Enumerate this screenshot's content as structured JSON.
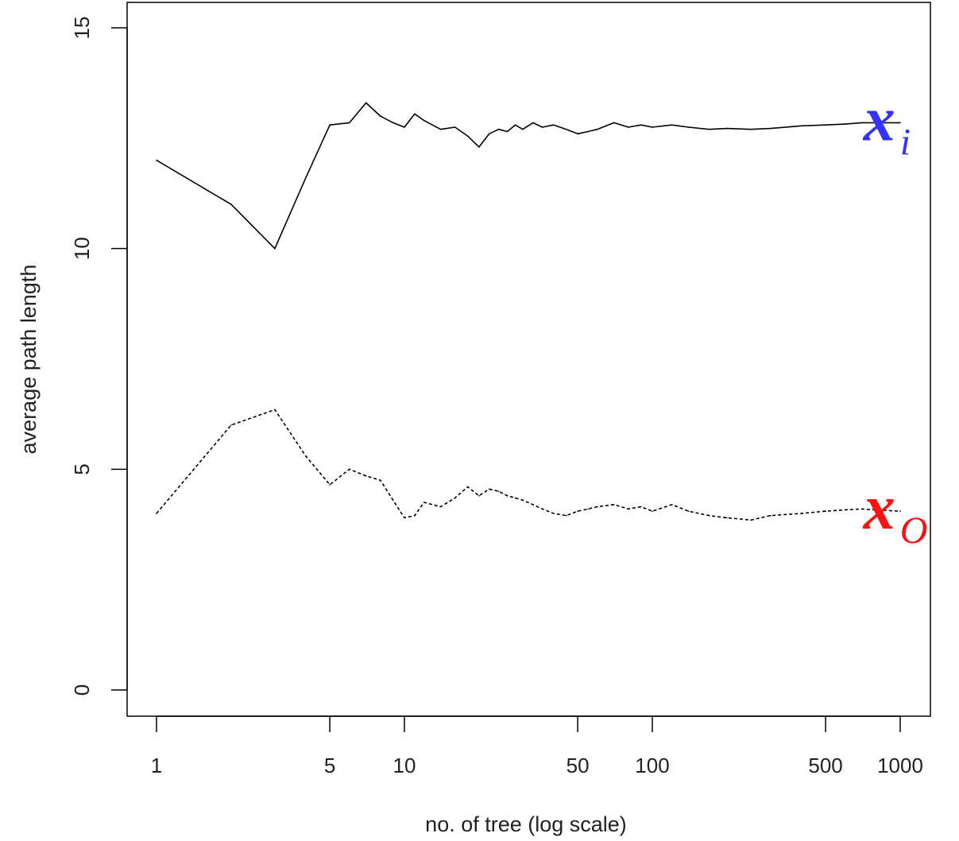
{
  "chart_data": {
    "type": "line",
    "title": "",
    "xlabel": "no. of tree (log scale)",
    "ylabel": "average path length",
    "x_scale": "log",
    "xlim": [
      1,
      1000
    ],
    "ylim": [
      0,
      15
    ],
    "x_ticks": [
      1,
      5,
      10,
      50,
      100,
      500,
      1000
    ],
    "x_tick_labels": [
      "1",
      "5",
      "10",
      "50",
      "100",
      "500",
      "1000"
    ],
    "y_ticks": [
      0,
      5,
      10,
      15
    ],
    "y_tick_labels": [
      "0",
      "5",
      "10",
      "15"
    ],
    "grid": false,
    "series": [
      {
        "line_style": "solid",
        "color": "#000000",
        "x": [
          1,
          2,
          3,
          4,
          5,
          6,
          7,
          8,
          9,
          10,
          11,
          12,
          14,
          16,
          18,
          20,
          22,
          24,
          26,
          28,
          30,
          33,
          36,
          40,
          45,
          50,
          55,
          60,
          70,
          80,
          90,
          100,
          120,
          140,
          170,
          200,
          250,
          300,
          400,
          500,
          600,
          700,
          800,
          1000
        ],
        "y": [
          12.0,
          11.0,
          10.0,
          11.6,
          12.8,
          12.85,
          13.3,
          13.0,
          12.85,
          12.75,
          13.05,
          12.9,
          12.7,
          12.75,
          12.55,
          12.3,
          12.6,
          12.7,
          12.65,
          12.8,
          12.7,
          12.85,
          12.75,
          12.8,
          12.7,
          12.6,
          12.65,
          12.7,
          12.85,
          12.75,
          12.8,
          12.75,
          12.8,
          12.75,
          12.7,
          12.72,
          12.7,
          12.72,
          12.78,
          12.8,
          12.82,
          12.85,
          12.85,
          12.85
        ]
      },
      {
        "line_style": "dashed",
        "color": "#000000",
        "x": [
          1,
          2,
          3,
          4,
          5,
          6,
          7,
          8,
          9,
          10,
          11,
          12,
          14,
          16,
          18,
          20,
          22,
          24,
          26,
          28,
          30,
          33,
          36,
          40,
          45,
          50,
          55,
          60,
          70,
          80,
          90,
          100,
          120,
          140,
          170,
          200,
          250,
          300,
          400,
          500,
          600,
          700,
          800,
          1000
        ],
        "y": [
          4.0,
          6.0,
          6.35,
          5.3,
          4.65,
          5.0,
          4.85,
          4.75,
          4.3,
          3.9,
          3.95,
          4.25,
          4.15,
          4.35,
          4.6,
          4.4,
          4.55,
          4.5,
          4.4,
          4.35,
          4.3,
          4.2,
          4.1,
          4.0,
          3.95,
          4.05,
          4.1,
          4.15,
          4.2,
          4.1,
          4.15,
          4.05,
          4.2,
          4.05,
          3.95,
          3.9,
          3.85,
          3.95,
          4.0,
          4.05,
          4.08,
          4.1,
          4.08,
          4.05
        ]
      }
    ],
    "annotations": [
      {
        "base": "x",
        "subscript": "i",
        "color": "#3333ff",
        "anchor_x": 800,
        "anchor_y": 12.85
      },
      {
        "base": "x",
        "subscript": "O",
        "color": "#ff1111",
        "anchor_x": 800,
        "anchor_y": 4.05
      }
    ]
  }
}
